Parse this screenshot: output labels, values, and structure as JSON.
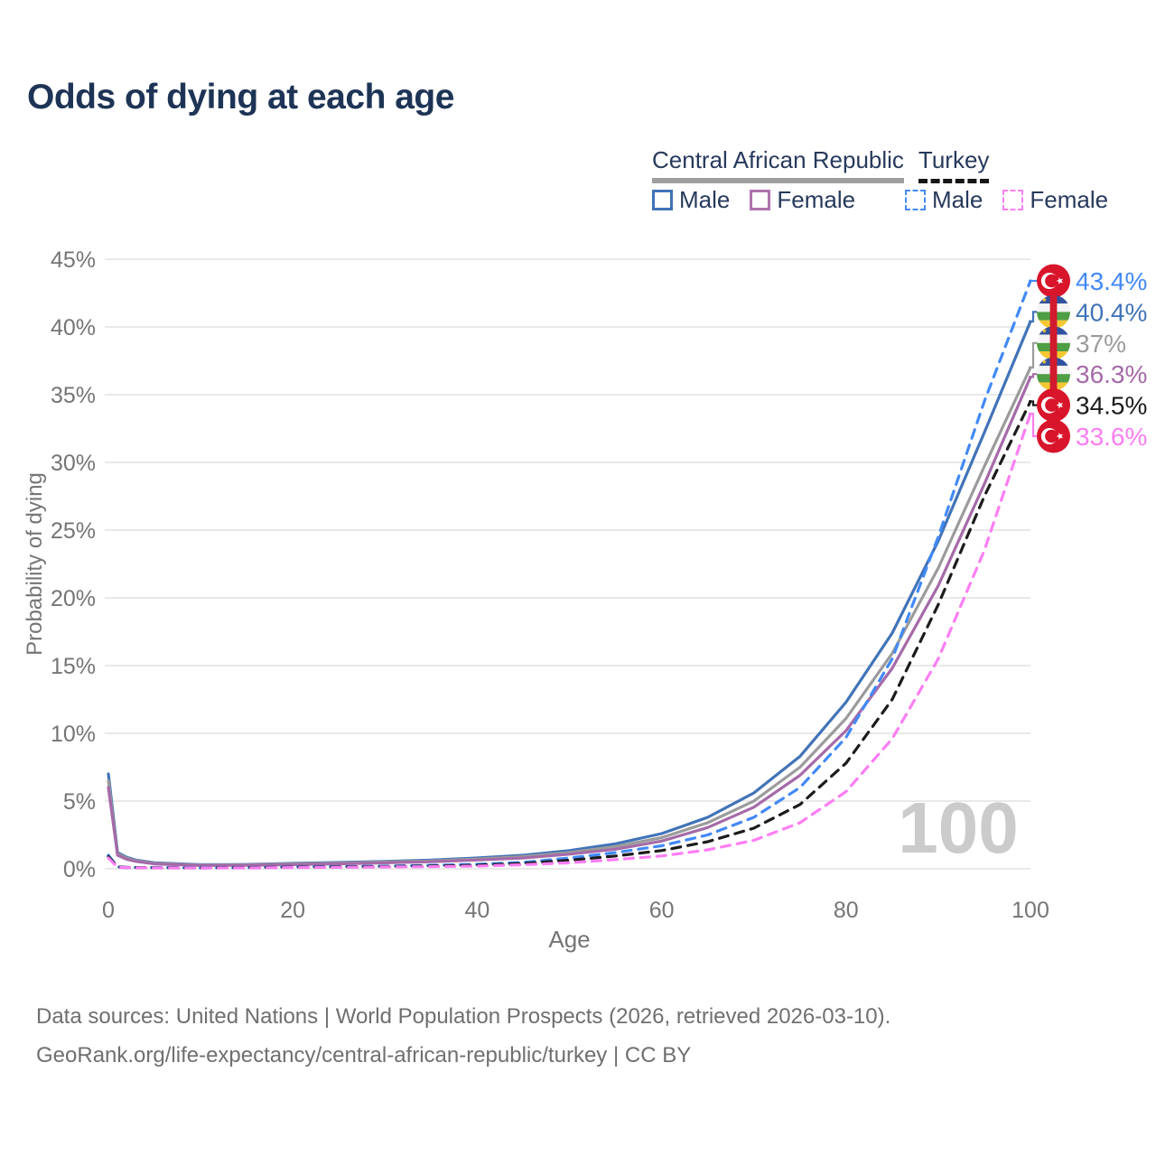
{
  "page": {
    "title": "Odds of dying at each age",
    "footer_line1": "Data sources: United Nations | World Population Prospects (2026, retrieved 2026-03-10).",
    "footer_line2": "GeoRank.org/life-expectancy/central-african-republic/turkey | CC BY"
  },
  "legend": {
    "groups": [
      {
        "label": "Central African Republic",
        "line_style": "solid",
        "underline_color": "#9e9e9e",
        "items": [
          {
            "label": "Male",
            "color": "#4173b8",
            "dashed": false
          },
          {
            "label": "Female",
            "color": "#ad74ad",
            "dashed": false
          }
        ]
      },
      {
        "label": "Turkey",
        "line_style": "dashed",
        "underline_color": "#161616",
        "items": [
          {
            "label": "Male",
            "color": "#4289f7",
            "dashed": true
          },
          {
            "label": "Female",
            "color": "#fb7ef3",
            "dashed": true
          }
        ]
      }
    ]
  },
  "chart_data": {
    "type": "line",
    "title": "Odds of dying at each age",
    "xlabel": "Age",
    "ylabel": "Probability of dying",
    "xlim": [
      0,
      100
    ],
    "ylim": [
      0,
      45
    ],
    "xticks": [
      0,
      20,
      40,
      60,
      80,
      100
    ],
    "yticks": [
      0,
      5,
      10,
      15,
      20,
      25,
      30,
      35,
      40,
      45
    ],
    "ytick_suffix": "%",
    "grid": true,
    "legend_position": "top-right",
    "watermark": "100",
    "x": [
      0,
      1,
      2,
      3,
      5,
      10,
      15,
      20,
      25,
      30,
      35,
      40,
      45,
      50,
      55,
      60,
      65,
      70,
      75,
      80,
      85,
      90,
      95,
      100
    ],
    "series": [
      {
        "id": "car-male",
        "name": "Central African Republic Male",
        "country": "Central African Republic",
        "sex": "Male",
        "icon": "central-african-republic-flag-icon",
        "color": "#4173b8",
        "dashed": false,
        "end_label": "40.4%",
        "values": [
          7.0,
          1.2,
          0.85,
          0.65,
          0.45,
          0.3,
          0.32,
          0.4,
          0.47,
          0.55,
          0.65,
          0.8,
          1.0,
          1.35,
          1.85,
          2.6,
          3.8,
          5.6,
          8.3,
          12.3,
          17.4,
          24.2,
          32.2,
          40.4
        ]
      },
      {
        "id": "car-total",
        "name": "Central African Republic Both sexes",
        "country": "Central African Republic",
        "sex": "Both",
        "icon": "central-african-republic-flag-icon",
        "color": "#9b9b9b",
        "dashed": false,
        "end_label": "37%",
        "values": [
          6.5,
          1.1,
          0.78,
          0.6,
          0.4,
          0.27,
          0.29,
          0.36,
          0.42,
          0.5,
          0.58,
          0.72,
          0.9,
          1.2,
          1.65,
          2.3,
          3.4,
          5.0,
          7.5,
          11.1,
          15.9,
          22.2,
          29.7,
          37.0
        ]
      },
      {
        "id": "car-female",
        "name": "Central African Republic Female",
        "country": "Central African Republic",
        "sex": "Female",
        "icon": "central-african-republic-flag-icon",
        "color": "#a56aa8",
        "dashed": false,
        "end_label": "36.3%",
        "values": [
          6.0,
          1.0,
          0.7,
          0.55,
          0.36,
          0.24,
          0.26,
          0.31,
          0.37,
          0.44,
          0.52,
          0.65,
          0.8,
          1.08,
          1.45,
          2.05,
          3.05,
          4.55,
          6.9,
          10.2,
          14.8,
          20.9,
          28.4,
          36.3
        ]
      },
      {
        "id": "turkey-male",
        "name": "Turkey Male",
        "country": "Turkey",
        "sex": "Male",
        "icon": "turkey-flag-icon",
        "color": "#4289f7",
        "dashed": true,
        "end_label": "43.4%",
        "values": [
          1.0,
          0.14,
          0.11,
          0.1,
          0.09,
          0.08,
          0.1,
          0.14,
          0.17,
          0.2,
          0.26,
          0.33,
          0.48,
          0.8,
          1.2,
          1.7,
          2.5,
          3.8,
          6.0,
          9.7,
          15.5,
          24.5,
          34.5,
          43.4
        ]
      },
      {
        "id": "turkey-total",
        "name": "Turkey Both sexes",
        "country": "Turkey",
        "sex": "Both",
        "icon": "turkey-flag-icon",
        "color": "#1c1c1c",
        "dashed": true,
        "end_label": "34.5%",
        "values": [
          0.9,
          0.13,
          0.1,
          0.09,
          0.08,
          0.07,
          0.09,
          0.12,
          0.14,
          0.17,
          0.21,
          0.27,
          0.39,
          0.63,
          0.95,
          1.35,
          2.0,
          3.0,
          4.75,
          7.8,
          12.5,
          19.5,
          27.5,
          34.5
        ]
      },
      {
        "id": "turkey-female",
        "name": "Turkey Female",
        "country": "Turkey",
        "sex": "Female",
        "icon": "turkey-flag-icon",
        "color": "#fb7ef3",
        "dashed": true,
        "end_label": "33.6%",
        "values": [
          0.8,
          0.11,
          0.09,
          0.08,
          0.07,
          0.06,
          0.07,
          0.09,
          0.11,
          0.13,
          0.16,
          0.2,
          0.3,
          0.45,
          0.68,
          0.95,
          1.4,
          2.1,
          3.4,
          5.7,
          9.6,
          15.5,
          23.5,
          33.6
        ]
      }
    ]
  }
}
